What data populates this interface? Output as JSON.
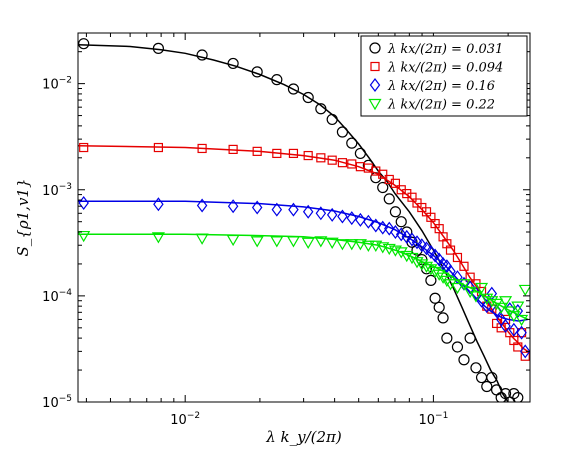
{
  "chart_data": {
    "type": "scatter",
    "xscale": "log",
    "yscale": "log",
    "xlim": [
      0.0037,
      0.245
    ],
    "ylim": [
      1e-05,
      0.03
    ],
    "xlabel": "λ k_y/(2π)",
    "ylabel": "S_{ρ1,v1}",
    "grid": false,
    "legend_position": "top-right",
    "xticks": [
      {
        "value": 0.01,
        "base": "10",
        "exp": "−2"
      },
      {
        "value": 0.1,
        "base": "10",
        "exp": "−1"
      }
    ],
    "yticks": [
      {
        "value": 1e-05,
        "base": "10",
        "exp": "−5"
      },
      {
        "value": 0.0001,
        "base": "10",
        "exp": "−4"
      },
      {
        "value": 0.001,
        "base": "10",
        "exp": "−3"
      },
      {
        "value": 0.01,
        "base": "10",
        "exp": "−2"
      }
    ],
    "series": [
      {
        "name": "λ k_x/(2π) = 0.031",
        "legend_label": "λ kx/(2π) = 0.031",
        "color": "#000000",
        "marker": "circle",
        "points": [
          [
            0.0039,
            0.0238
          ],
          [
            0.0078,
            0.0215
          ],
          [
            0.0117,
            0.0186
          ],
          [
            0.0156,
            0.0155
          ],
          [
            0.0195,
            0.0129
          ],
          [
            0.0234,
            0.0109
          ],
          [
            0.0273,
            0.0089
          ],
          [
            0.0313,
            0.0074
          ],
          [
            0.0352,
            0.0058
          ],
          [
            0.0391,
            0.0046
          ],
          [
            0.043,
            0.0035
          ],
          [
            0.0469,
            0.00275
          ],
          [
            0.0508,
            0.0022
          ],
          [
            0.0547,
            0.0017
          ],
          [
            0.0586,
            0.0013
          ],
          [
            0.0625,
            0.00105
          ],
          [
            0.0664,
            0.00082
          ],
          [
            0.0703,
            0.00062
          ],
          [
            0.0742,
            0.0005
          ],
          [
            0.0781,
            0.0004
          ],
          [
            0.082,
            0.00032
          ],
          [
            0.0859,
            0.00027
          ],
          [
            0.0898,
            0.00022
          ],
          [
            0.0938,
            0.00018
          ],
          [
            0.0977,
            0.00014
          ],
          [
            0.1016,
            9.5e-05
          ],
          [
            0.1055,
            7.8e-05
          ],
          [
            0.1094,
            6.2e-05
          ],
          [
            0.1133,
            4e-05
          ],
          [
            0.125,
            3.3e-05
          ],
          [
            0.1328,
            2.5e-05
          ],
          [
            0.1406,
            4e-05
          ],
          [
            0.1484,
            2.1e-05
          ],
          [
            0.1563,
            1.7e-05
          ],
          [
            0.1641,
            1.4e-05
          ],
          [
            0.1719,
            1.7e-05
          ],
          [
            0.1797,
            1.3e-05
          ],
          [
            0.1875,
            1.1e-05
          ],
          [
            0.1953,
            1.2e-05
          ],
          [
            0.2031,
            1e-05
          ],
          [
            0.2109,
            1.2e-05
          ],
          [
            0.2188,
            1.1e-05
          ]
        ],
        "fit": [
          [
            0.0037,
            0.0232
          ],
          [
            0.006,
            0.0224
          ],
          [
            0.008,
            0.0209
          ],
          [
            0.01,
            0.0193
          ],
          [
            0.013,
            0.0167
          ],
          [
            0.016,
            0.0146
          ],
          [
            0.02,
            0.0122
          ],
          [
            0.025,
            0.0098
          ],
          [
            0.03,
            0.0079
          ],
          [
            0.035,
            0.0063
          ],
          [
            0.04,
            0.0049
          ],
          [
            0.045,
            0.0036
          ],
          [
            0.05,
            0.0027
          ],
          [
            0.055,
            0.002
          ],
          [
            0.06,
            0.0015
          ],
          [
            0.065,
            0.0012
          ],
          [
            0.07,
            0.00092
          ],
          [
            0.08,
            0.00062
          ],
          [
            0.09,
            0.00041
          ],
          [
            0.1,
            0.00027
          ],
          [
            0.11,
            0.00018
          ],
          [
            0.12,
            0.00012
          ],
          [
            0.13,
            7.9e-05
          ],
          [
            0.14,
            5.3e-05
          ],
          [
            0.15,
            3.7e-05
          ],
          [
            0.16,
            2.7e-05
          ],
          [
            0.17,
            2e-05
          ],
          [
            0.18,
            1.6e-05
          ],
          [
            0.19,
            1.2e-05
          ],
          [
            0.2,
            1e-05
          ]
        ]
      },
      {
        "name": "λ k_x/(2π) = 0.094",
        "legend_label": "λ kx/(2π) = 0.094",
        "color": "#e60000",
        "marker": "square",
        "points": [
          [
            0.0039,
            0.0025
          ],
          [
            0.0078,
            0.0025
          ],
          [
            0.0117,
            0.00245
          ],
          [
            0.0156,
            0.0024
          ],
          [
            0.0195,
            0.0023
          ],
          [
            0.0234,
            0.0022
          ],
          [
            0.0273,
            0.0022
          ],
          [
            0.0313,
            0.0021
          ],
          [
            0.0352,
            0.002
          ],
          [
            0.0391,
            0.0019
          ],
          [
            0.043,
            0.0018
          ],
          [
            0.0469,
            0.00175
          ],
          [
            0.0508,
            0.00165
          ],
          [
            0.0547,
            0.0016
          ],
          [
            0.0586,
            0.0015
          ],
          [
            0.0625,
            0.0014
          ],
          [
            0.0664,
            0.00125
          ],
          [
            0.0703,
            0.00115
          ],
          [
            0.0742,
            0.001
          ],
          [
            0.0781,
            0.00092
          ],
          [
            0.082,
            0.00085
          ],
          [
            0.0859,
            0.00075
          ],
          [
            0.0898,
            0.00068
          ],
          [
            0.0938,
            0.00062
          ],
          [
            0.0977,
            0.00055
          ],
          [
            0.1016,
            0.00048
          ],
          [
            0.1055,
            0.00043
          ],
          [
            0.1094,
            0.00036
          ],
          [
            0.1133,
            0.00031
          ],
          [
            0.1172,
            0.00027
          ],
          [
            0.125,
            0.00023
          ],
          [
            0.1328,
            0.00019
          ],
          [
            0.1406,
            0.00015
          ],
          [
            0.1484,
            0.00013
          ],
          [
            0.1563,
            0.00011
          ],
          [
            0.1641,
            8e-05
          ],
          [
            0.1719,
            7.5e-05
          ],
          [
            0.1797,
            5.5e-05
          ],
          [
            0.1875,
            5e-05
          ],
          [
            0.1953,
            6e-05
          ],
          [
            0.2031,
            4.5e-05
          ],
          [
            0.2109,
            3.8e-05
          ],
          [
            0.2188,
            3.3e-05
          ],
          [
            0.2266,
            4.5e-05
          ],
          [
            0.2344,
            2.7e-05
          ]
        ],
        "fit": [
          [
            0.0037,
            0.0026
          ],
          [
            0.01,
            0.0025
          ],
          [
            0.02,
            0.0023
          ],
          [
            0.03,
            0.0021
          ],
          [
            0.04,
            0.0019
          ],
          [
            0.05,
            0.00165
          ],
          [
            0.06,
            0.0014
          ],
          [
            0.07,
            0.0011
          ],
          [
            0.08,
            0.00086
          ],
          [
            0.09,
            0.00065
          ],
          [
            0.1,
            0.00049
          ],
          [
            0.11,
            0.00036
          ],
          [
            0.12,
            0.00027
          ],
          [
            0.13,
            0.0002
          ],
          [
            0.14,
            0.00015
          ],
          [
            0.15,
            0.00012
          ],
          [
            0.16,
            9.5e-05
          ],
          [
            0.17,
            7.8e-05
          ],
          [
            0.18,
            6.4e-05
          ],
          [
            0.19,
            5.4e-05
          ],
          [
            0.2,
            4.6e-05
          ],
          [
            0.21,
            4e-05
          ],
          [
            0.22,
            3.6e-05
          ],
          [
            0.23,
            3.2e-05
          ],
          [
            0.24,
            3e-05
          ]
        ]
      },
      {
        "name": "λ k_x/(2π) = 0.16",
        "legend_label": "λ kx/(2π) = 0.16",
        "color": "#0000e6",
        "marker": "diamond",
        "points": [
          [
            0.0039,
            0.00075
          ],
          [
            0.0078,
            0.00073
          ],
          [
            0.0117,
            0.00071
          ],
          [
            0.0156,
            0.0007
          ],
          [
            0.0195,
            0.00068
          ],
          [
            0.0234,
            0.00065
          ],
          [
            0.0273,
            0.00065
          ],
          [
            0.0313,
            0.00062
          ],
          [
            0.0352,
            0.0006
          ],
          [
            0.0391,
            0.00058
          ],
          [
            0.043,
            0.00056
          ],
          [
            0.0469,
            0.00054
          ],
          [
            0.0508,
            0.00052
          ],
          [
            0.0547,
            0.0005
          ],
          [
            0.0586,
            0.00046
          ],
          [
            0.0625,
            0.00044
          ],
          [
            0.0664,
            0.00043
          ],
          [
            0.0703,
            0.0004
          ],
          [
            0.0742,
            0.00038
          ],
          [
            0.0781,
            0.00036
          ],
          [
            0.082,
            0.00034
          ],
          [
            0.0859,
            0.00032
          ],
          [
            0.0898,
            0.0003
          ],
          [
            0.0938,
            0.00028
          ],
          [
            0.0977,
            0.00026
          ],
          [
            0.1016,
            0.00024
          ],
          [
            0.1055,
            0.00022
          ],
          [
            0.1094,
            0.0002
          ],
          [
            0.1133,
            0.00019
          ],
          [
            0.1172,
            0.00017
          ],
          [
            0.125,
            0.00015
          ],
          [
            0.1328,
            0.00013
          ],
          [
            0.1406,
            0.00012
          ],
          [
            0.1484,
            0.000105
          ],
          [
            0.1563,
            9e-05
          ],
          [
            0.1641,
            8e-05
          ],
          [
            0.1719,
            0.000105
          ],
          [
            0.1797,
            7.2e-05
          ],
          [
            0.1875,
            6e-05
          ],
          [
            0.1953,
            5.2e-05
          ],
          [
            0.2031,
            7.5e-05
          ],
          [
            0.2109,
            4.8e-05
          ],
          [
            0.2188,
            7.2e-05
          ],
          [
            0.2266,
            4.5e-05
          ],
          [
            0.2344,
            3e-05
          ]
        ],
        "fit": [
          [
            0.0037,
            0.00078
          ],
          [
            0.01,
            0.00078
          ],
          [
            0.02,
            0.00074
          ],
          [
            0.03,
            0.00069
          ],
          [
            0.04,
            0.00063
          ],
          [
            0.05,
            0.00056
          ],
          [
            0.06,
            0.00049
          ],
          [
            0.07,
            0.00042
          ],
          [
            0.08,
            0.00035
          ],
          [
            0.09,
            0.00029
          ],
          [
            0.1,
            0.00024
          ],
          [
            0.11,
            0.0002
          ],
          [
            0.12,
            0.00016
          ],
          [
            0.13,
            0.00013
          ],
          [
            0.14,
            0.00011
          ],
          [
            0.15,
            9.3e-05
          ],
          [
            0.16,
            8.1e-05
          ],
          [
            0.17,
            7.2e-05
          ],
          [
            0.18,
            6.6e-05
          ],
          [
            0.19,
            6.2e-05
          ],
          [
            0.2,
            6e-05
          ],
          [
            0.21,
            5.9e-05
          ],
          [
            0.22,
            5.8e-05
          ],
          [
            0.23,
            5.9e-05
          ],
          [
            0.24,
            6e-05
          ]
        ]
      },
      {
        "name": "λ k_x/(2π) = 0.22",
        "legend_label": "λ kx/(2π) = 0.22",
        "color": "#00e600",
        "marker": "triangle-down",
        "points": [
          [
            0.0039,
            0.00037
          ],
          [
            0.0078,
            0.00036
          ],
          [
            0.0117,
            0.00035
          ],
          [
            0.0156,
            0.00034
          ],
          [
            0.0195,
            0.00033
          ],
          [
            0.0234,
            0.00033
          ],
          [
            0.0273,
            0.00033
          ],
          [
            0.0313,
            0.00032
          ],
          [
            0.0352,
            0.00033
          ],
          [
            0.0391,
            0.00032
          ],
          [
            0.043,
            0.00031
          ],
          [
            0.0469,
            0.00031
          ],
          [
            0.0508,
            0.00031
          ],
          [
            0.0547,
            0.0003
          ],
          [
            0.0586,
            0.0003
          ],
          [
            0.0625,
            0.00029
          ],
          [
            0.0664,
            0.00028
          ],
          [
            0.0703,
            0.00027
          ],
          [
            0.0742,
            0.00026
          ],
          [
            0.0781,
            0.00024
          ],
          [
            0.082,
            0.00023
          ],
          [
            0.0859,
            0.00021
          ],
          [
            0.0898,
            0.0002
          ],
          [
            0.0938,
            0.00019
          ],
          [
            0.0977,
            0.00018
          ],
          [
            0.1016,
            0.00017
          ],
          [
            0.1055,
            0.00016
          ],
          [
            0.1094,
            0.00015
          ],
          [
            0.1133,
            0.00014
          ],
          [
            0.1172,
            0.00013
          ],
          [
            0.125,
            0.00012
          ],
          [
            0.1328,
            0.00013
          ],
          [
            0.1406,
            0.00011
          ],
          [
            0.1484,
            0.0001
          ],
          [
            0.1563,
            0.00012
          ],
          [
            0.1641,
            9.5e-05
          ],
          [
            0.1719,
            9e-05
          ],
          [
            0.1797,
            8.5e-05
          ],
          [
            0.1875,
            7.8e-05
          ],
          [
            0.1953,
            9e-05
          ],
          [
            0.2031,
            7.2e-05
          ],
          [
            0.2109,
            6.5e-05
          ],
          [
            0.2188,
            8e-05
          ],
          [
            0.2266,
            6e-05
          ],
          [
            0.2344,
            0.000115
          ]
        ],
        "fit": [
          [
            0.0037,
            0.00038
          ],
          [
            0.01,
            0.00038
          ],
          [
            0.02,
            0.00037
          ],
          [
            0.03,
            0.00036
          ],
          [
            0.04,
            0.00034
          ],
          [
            0.05,
            0.00032
          ],
          [
            0.06,
            0.0003
          ],
          [
            0.07,
            0.00027
          ],
          [
            0.08,
            0.00024
          ],
          [
            0.09,
            0.00021
          ],
          [
            0.1,
            0.00019
          ],
          [
            0.11,
            0.00017
          ],
          [
            0.12,
            0.00015
          ],
          [
            0.13,
            0.00013
          ],
          [
            0.14,
            0.00012
          ],
          [
            0.15,
            0.00011
          ],
          [
            0.16,
            0.0001
          ],
          [
            0.17,
            9.2e-05
          ],
          [
            0.18,
            8.5e-05
          ],
          [
            0.19,
            7.9e-05
          ],
          [
            0.2,
            7.4e-05
          ],
          [
            0.21,
            7e-05
          ],
          [
            0.22,
            6.6e-05
          ],
          [
            0.23,
            6.3e-05
          ],
          [
            0.24,
            6e-05
          ]
        ]
      }
    ]
  }
}
